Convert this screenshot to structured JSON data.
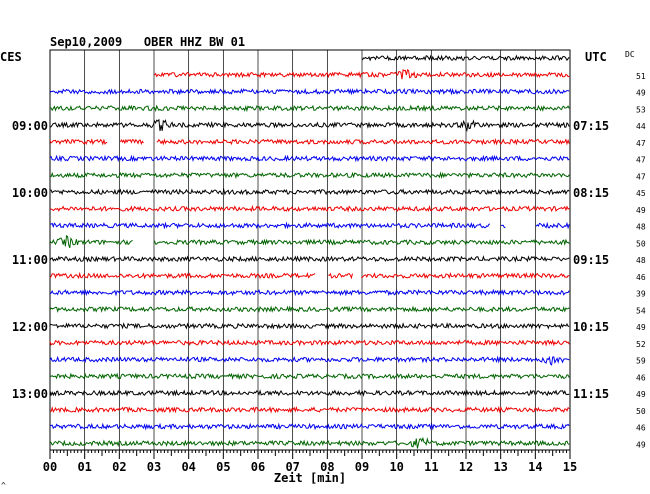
{
  "title": "Sep10,2009   OBER HHZ BW 01",
  "left_timezone": "CES",
  "right_timezone": "UTC",
  "dc_header": "DC",
  "xlabel": "Zeit [min]",
  "corner_mark": "^",
  "colors": {
    "black": "#000000",
    "red": "#ee0000",
    "blue": "#0000ee",
    "green": "#006400",
    "grid": "#000000",
    "background": "#ffffff"
  },
  "chart_data": {
    "type": "line",
    "title": "Sep10,2009   OBER HHZ BW 01",
    "xlabel": "Zeit [min]",
    "ylabel": "",
    "xlim": [
      0,
      15
    ],
    "x_ticks": [
      "00",
      "01",
      "02",
      "03",
      "04",
      "05",
      "06",
      "07",
      "08",
      "09",
      "10",
      "11",
      "12",
      "13",
      "14",
      "15"
    ],
    "left_hour_labels": [
      {
        "trace": 4,
        "label": "09:00"
      },
      {
        "trace": 8,
        "label": "10:00"
      },
      {
        "trace": 12,
        "label": "11:00"
      },
      {
        "trace": 16,
        "label": "12:00"
      },
      {
        "trace": 20,
        "label": "13:00"
      }
    ],
    "right_hour_labels": [
      {
        "trace": 4,
        "label": "07:15"
      },
      {
        "trace": 8,
        "label": "08:15"
      },
      {
        "trace": 12,
        "label": "09:15"
      },
      {
        "trace": 16,
        "label": "10:15"
      },
      {
        "trace": 20,
        "label": "11:15"
      }
    ],
    "traces": [
      {
        "color": "black",
        "dc": "",
        "data_start_min": 9.0,
        "gaps": [],
        "events": []
      },
      {
        "color": "red",
        "dc": "51",
        "data_start_min": 3.0,
        "gaps": [],
        "events": [
          10.3
        ]
      },
      {
        "color": "blue",
        "dc": "49",
        "data_start_min": 0,
        "gaps": [],
        "events": []
      },
      {
        "color": "green",
        "dc": "53",
        "data_start_min": 0,
        "gaps": [],
        "events": []
      },
      {
        "color": "black",
        "dc": "44",
        "data_start_min": 0,
        "gaps": [],
        "events": [
          3.2,
          12.1
        ]
      },
      {
        "color": "red",
        "dc": "47",
        "data_start_min": 0,
        "gaps": [
          [
            1.65,
            2.0
          ],
          [
            2.7,
            3.05
          ]
        ],
        "events": []
      },
      {
        "color": "blue",
        "dc": "47",
        "data_start_min": 0,
        "gaps": [],
        "events": []
      },
      {
        "color": "green",
        "dc": "47",
        "data_start_min": 0,
        "gaps": [],
        "events": []
      },
      {
        "color": "black",
        "dc": "45",
        "data_start_min": 0,
        "gaps": [],
        "events": []
      },
      {
        "color": "red",
        "dc": "49",
        "data_start_min": 0,
        "gaps": [],
        "events": []
      },
      {
        "color": "blue",
        "dc": "48",
        "data_start_min": 0,
        "gaps": [
          [
            12.7,
            13.0
          ],
          [
            13.15,
            14.0
          ]
        ],
        "events": []
      },
      {
        "color": "green",
        "dc": "50",
        "data_start_min": 0,
        "gaps": [
          [
            2.4,
            3.0
          ]
        ],
        "events": [
          0.5
        ]
      },
      {
        "color": "black",
        "dc": "48",
        "data_start_min": 0,
        "gaps": [],
        "events": []
      },
      {
        "color": "red",
        "dc": "46",
        "data_start_min": 0,
        "gaps": [
          [
            7.65,
            8.0
          ],
          [
            8.75,
            8.95
          ]
        ],
        "events": []
      },
      {
        "color": "blue",
        "dc": "39",
        "data_start_min": 0,
        "gaps": [],
        "events": []
      },
      {
        "color": "green",
        "dc": "54",
        "data_start_min": 0,
        "gaps": [],
        "events": []
      },
      {
        "color": "black",
        "dc": "49",
        "data_start_min": 0,
        "gaps": [],
        "events": []
      },
      {
        "color": "red",
        "dc": "52",
        "data_start_min": 0,
        "gaps": [],
        "events": []
      },
      {
        "color": "blue",
        "dc": "59",
        "data_start_min": 0,
        "gaps": [],
        "events": [
          14.5
        ]
      },
      {
        "color": "green",
        "dc": "46",
        "data_start_min": 0,
        "gaps": [],
        "events": []
      },
      {
        "color": "black",
        "dc": "49",
        "data_start_min": 0,
        "gaps": [],
        "events": []
      },
      {
        "color": "red",
        "dc": "50",
        "data_start_min": 0,
        "gaps": [],
        "events": []
      },
      {
        "color": "blue",
        "dc": "46",
        "data_start_min": 0,
        "gaps": [],
        "events": []
      },
      {
        "color": "green",
        "dc": "49",
        "data_start_min": 0,
        "gaps": [],
        "events": [
          10.7
        ]
      }
    ]
  }
}
